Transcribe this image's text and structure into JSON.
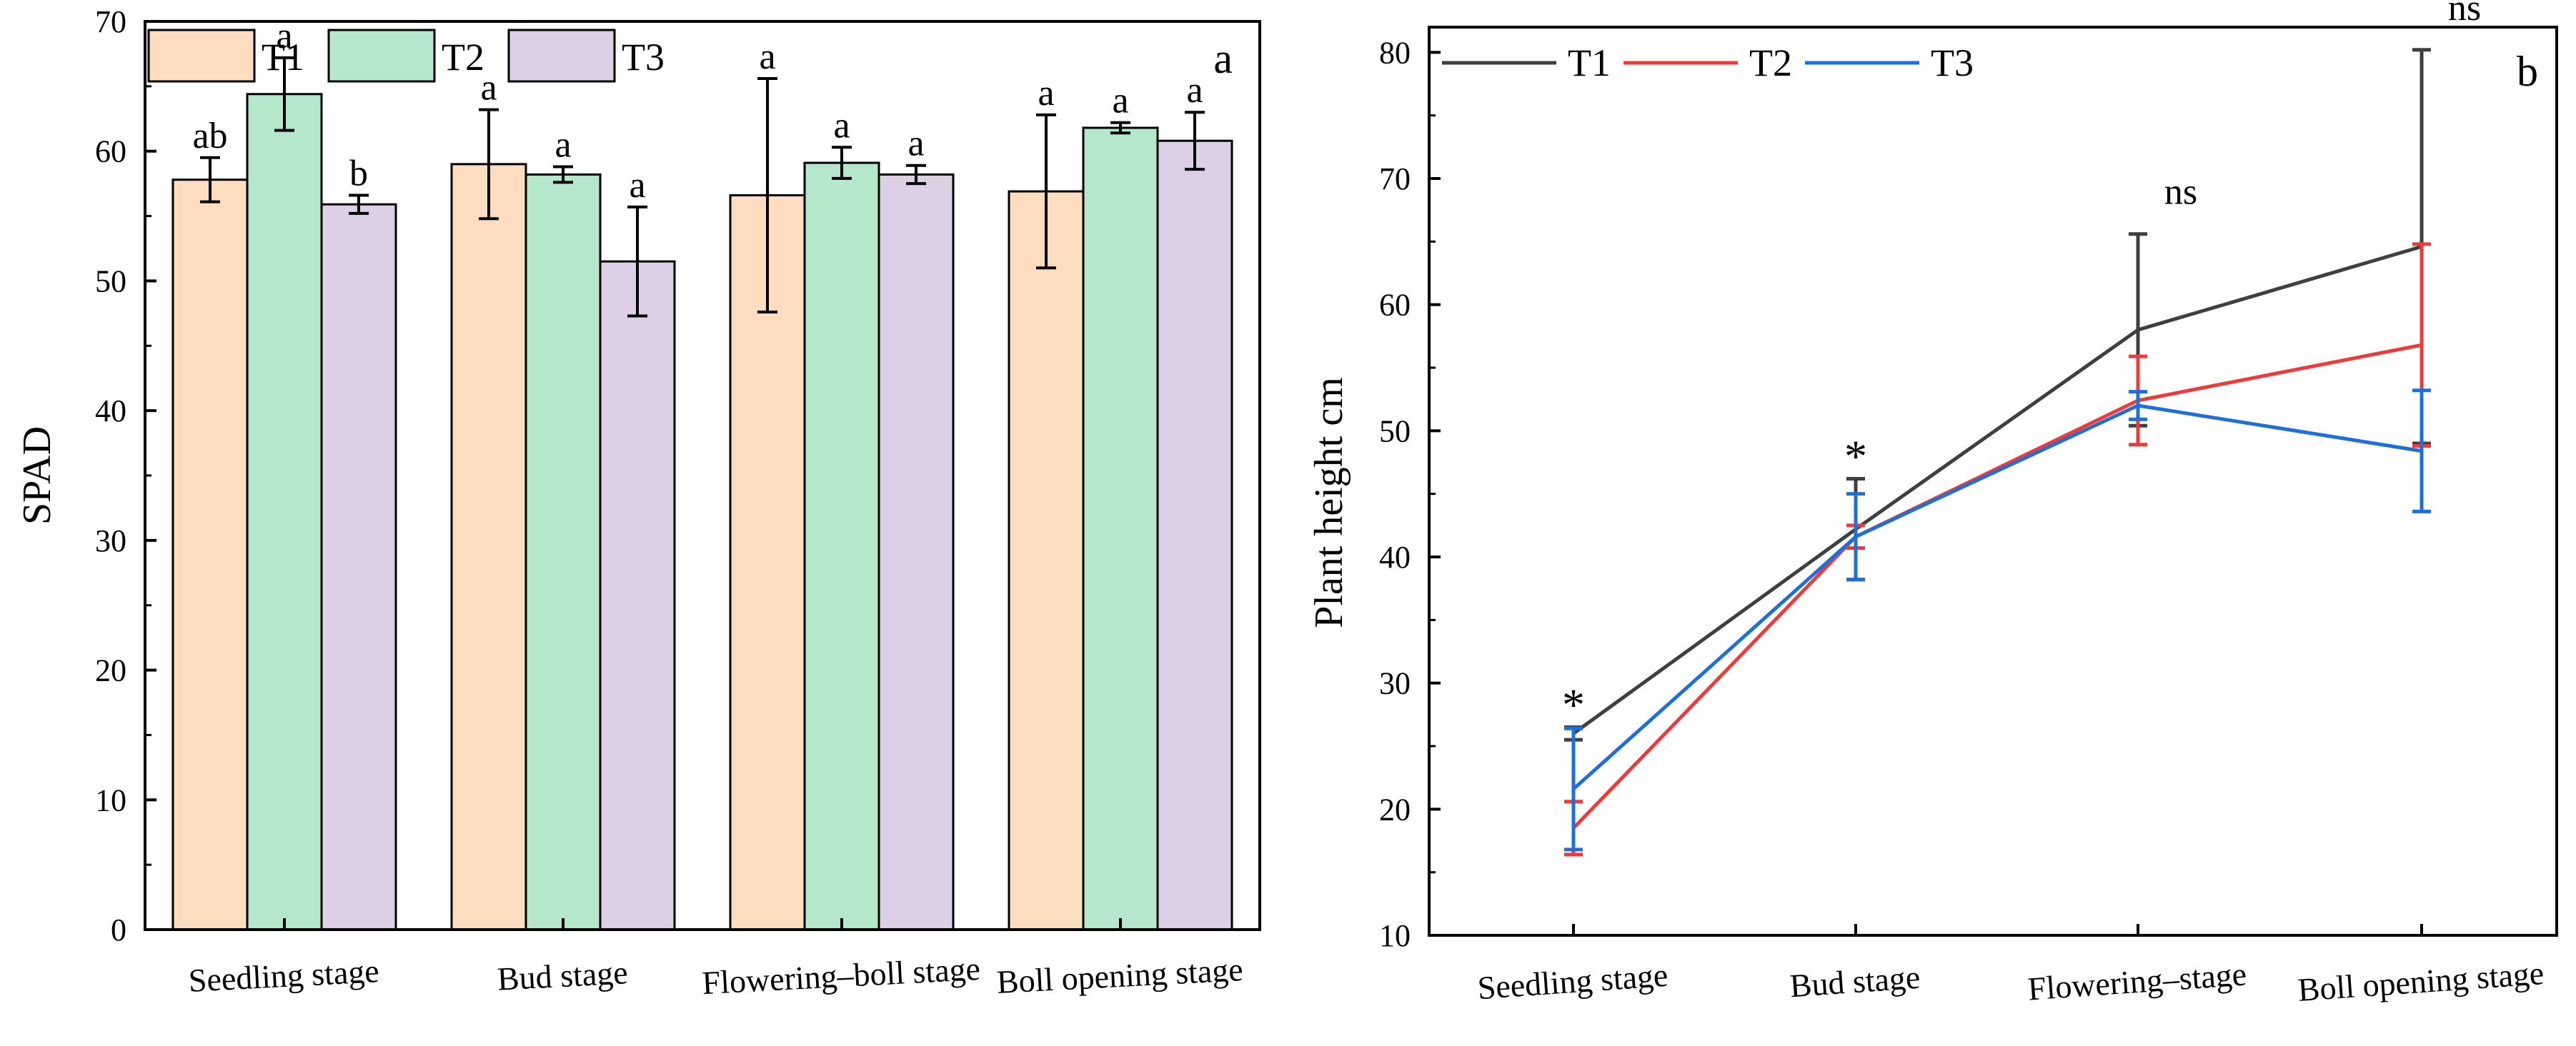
{
  "chart_data": [
    {
      "type": "bar",
      "panel_label": "a",
      "ylabel": "SPAD",
      "xlabel": "",
      "ylim": [
        0,
        70
      ],
      "yticks": [
        "0",
        "10",
        "20",
        "30",
        "40",
        "50",
        "60",
        "70"
      ],
      "categories": [
        "Seedling stage",
        "Bud stage",
        "Flowering–boll stage",
        "Boll opening stage"
      ],
      "legend_position": "top-left",
      "series": [
        {
          "name": "T1",
          "color": "#FCDDC0",
          "values": [
            57.8,
            59.0,
            56.6,
            56.9
          ],
          "errors": [
            1.7,
            4.2,
            9.0,
            5.9
          ],
          "letters": [
            "ab",
            "a",
            "a",
            "a"
          ]
        },
        {
          "name": "T2",
          "color": "#B5E7CB",
          "values": [
            64.4,
            58.2,
            59.1,
            61.8
          ],
          "errors": [
            2.8,
            0.6,
            1.2,
            0.4
          ],
          "letters": [
            "a",
            "a",
            "a",
            "a"
          ]
        },
        {
          "name": "T3",
          "color": "#DDCFE6",
          "values": [
            55.9,
            51.5,
            58.2,
            60.8
          ],
          "errors": [
            0.7,
            4.2,
            0.7,
            2.2
          ],
          "letters": [
            "b",
            "a",
            "a",
            "a"
          ]
        }
      ]
    },
    {
      "type": "line",
      "panel_label": "b",
      "ylabel": "Plant height cm",
      "xlabel": "",
      "ylim": [
        10,
        82
      ],
      "yticks": [
        "10",
        "20",
        "30",
        "40",
        "50",
        "60",
        "70",
        "80"
      ],
      "categories": [
        "Seedling stage",
        "Bud stage",
        "Flowering–stage",
        "Boll opening stage"
      ],
      "legend_position": "top-left",
      "significance": [
        "*",
        "*",
        "ns",
        "ns"
      ],
      "series": [
        {
          "name": "T1",
          "color": "#3F3F3F",
          "values": [
            26.0,
            42.2,
            58.0,
            64.6
          ],
          "errors": [
            0.5,
            4.0,
            7.6,
            15.6
          ]
        },
        {
          "name": "T2",
          "color": "#EE3A3A",
          "values": [
            18.5,
            41.6,
            52.4,
            56.8
          ],
          "errors": [
            2.1,
            0.9,
            3.5,
            8.0
          ]
        },
        {
          "name": "T3",
          "color": "#1E6FD9",
          "values": [
            21.6,
            41.6,
            52.0,
            48.4
          ],
          "errors": [
            4.8,
            3.4,
            1.1,
            4.8
          ]
        }
      ]
    }
  ]
}
